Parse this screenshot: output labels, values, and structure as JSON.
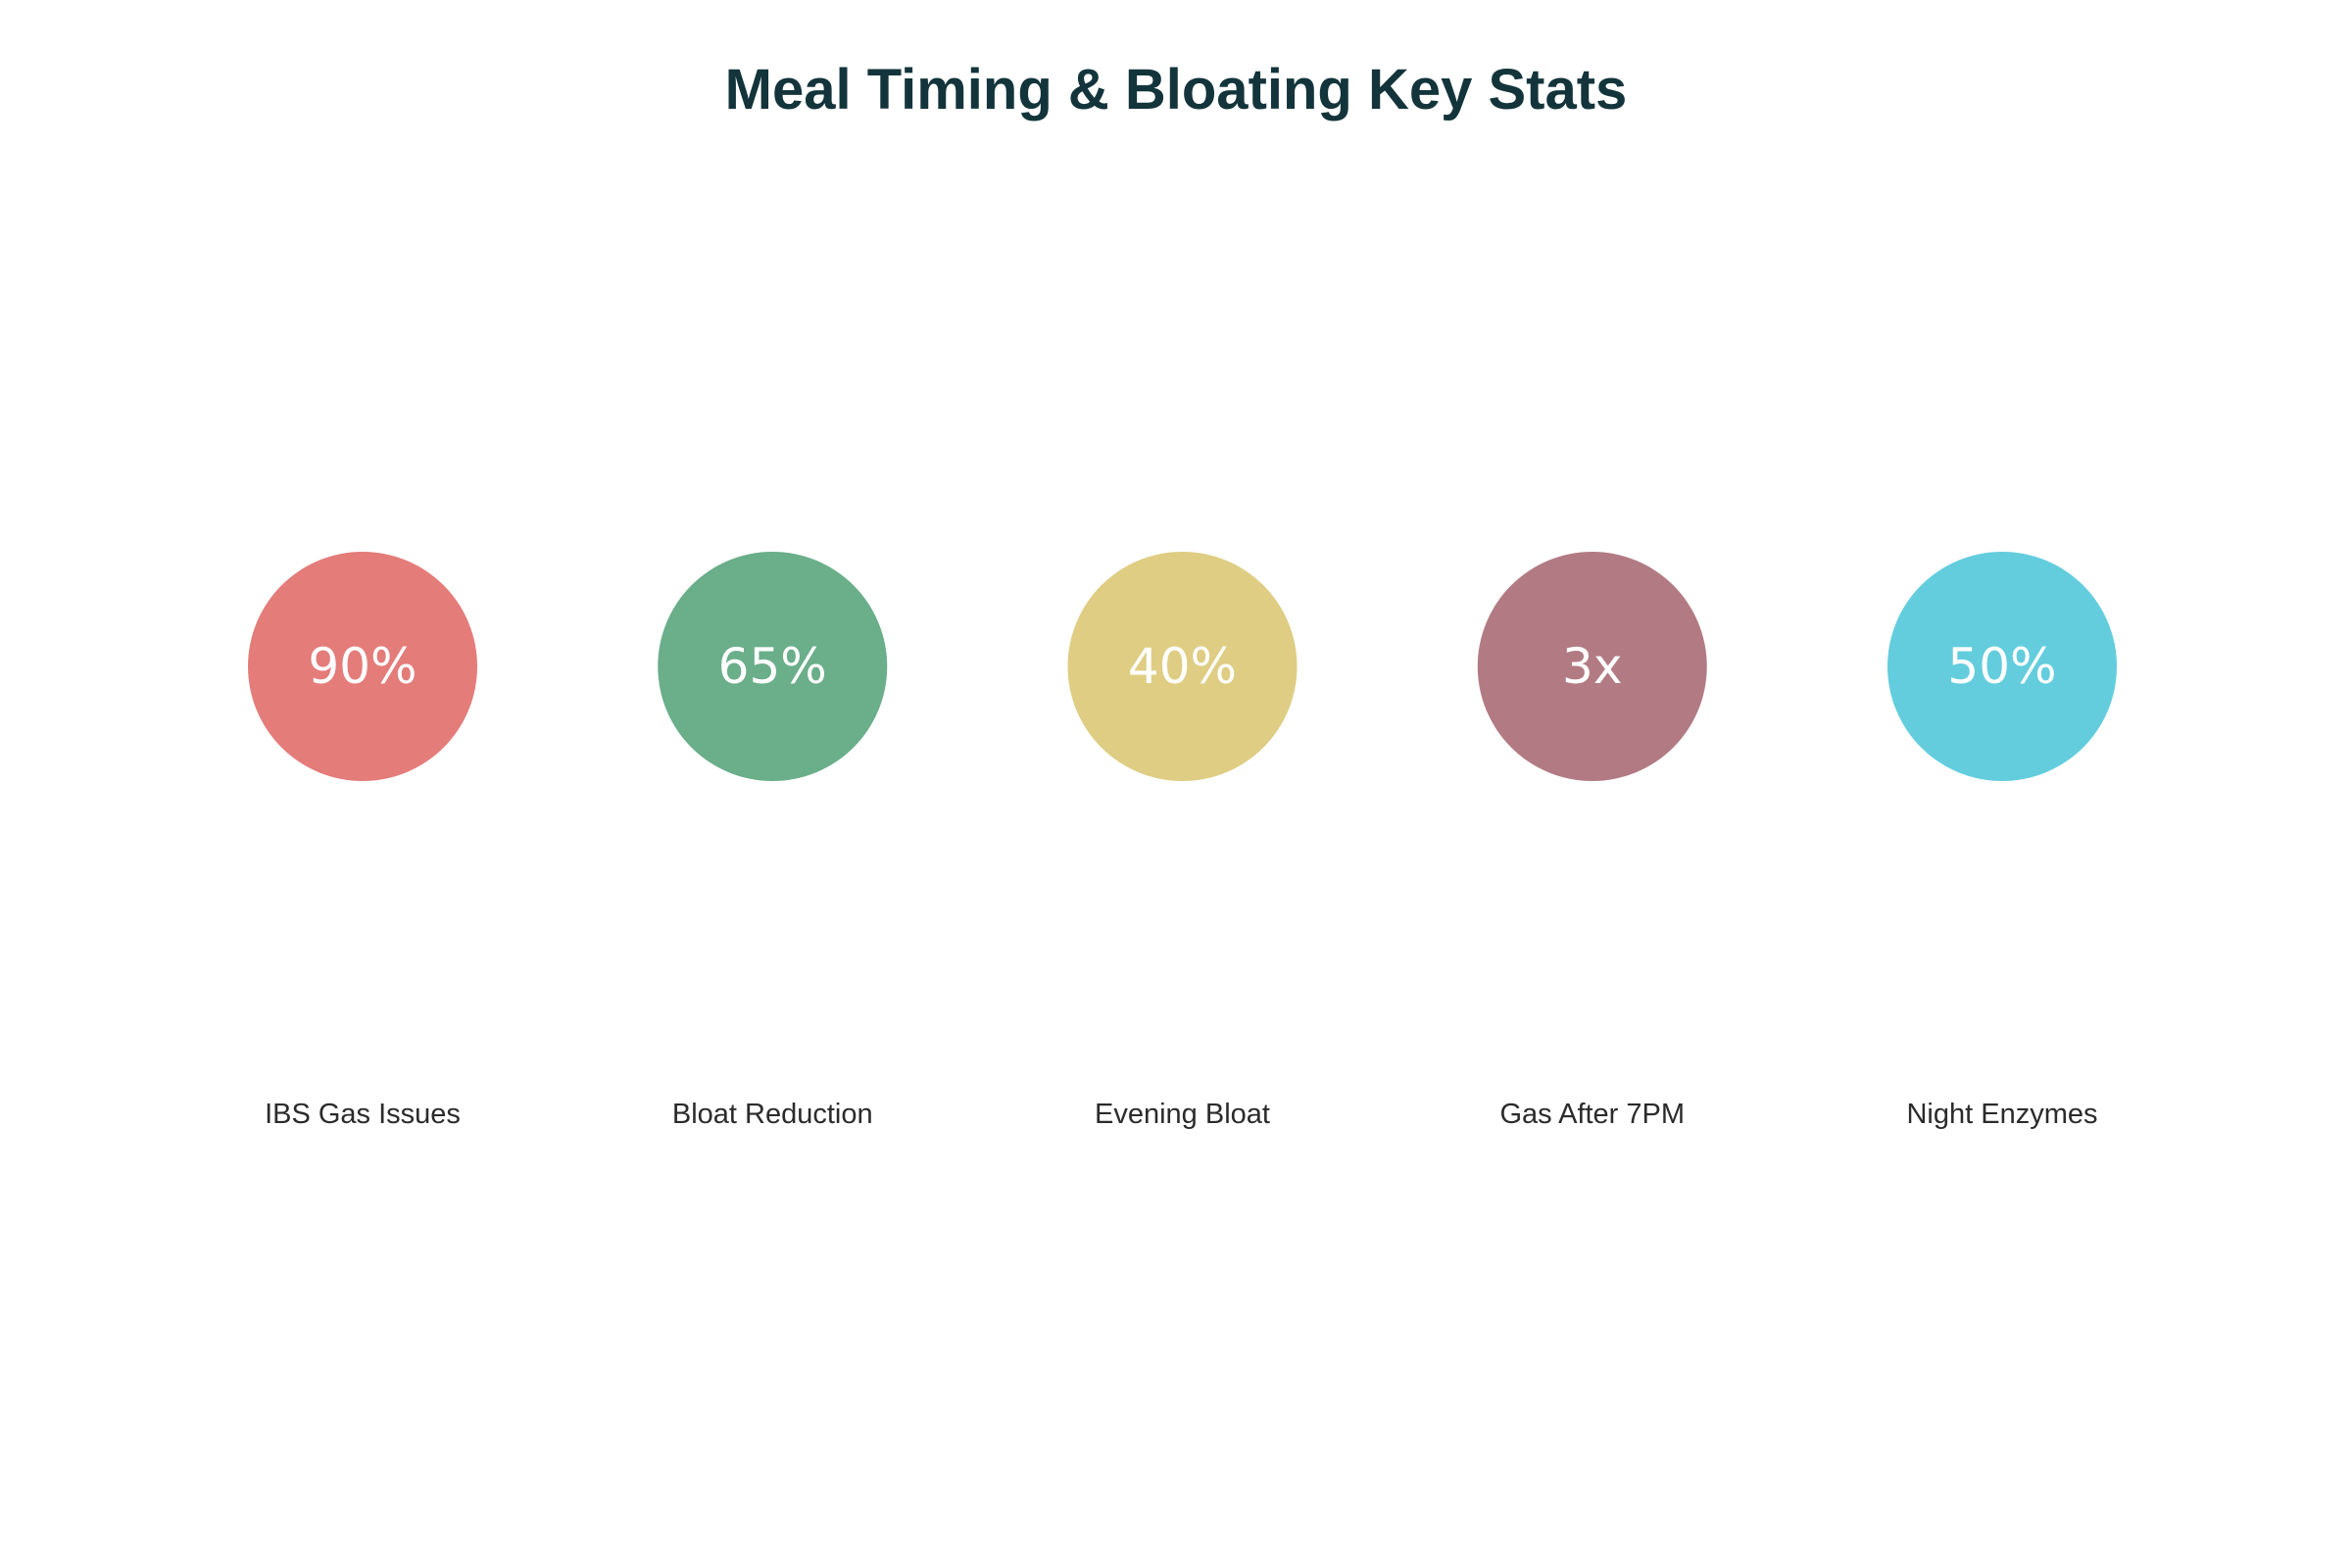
{
  "chart_data": {
    "type": "bubble",
    "title": "Meal Timing & Bloating Key Stats",
    "items": [
      {
        "label": "IBS Gas Issues",
        "value_text": "90%",
        "color": "#e47c7a"
      },
      {
        "label": "Bloat Reduction",
        "value_text": "65%",
        "color": "#6aae8a"
      },
      {
        "label": "Evening Bloat",
        "value_text": "40%",
        "color": "#decd83"
      },
      {
        "label": "Gas After 7PM",
        "value_text": "3x",
        "color": "#b27b83"
      },
      {
        "label": "Night Enzymes",
        "value_text": "50%",
        "color": "#63cddd"
      }
    ],
    "value_text_color": "#ffffff",
    "label_text_color": "#2b2b2b",
    "title_color": "#13343b",
    "legend": "none",
    "grid": false
  }
}
